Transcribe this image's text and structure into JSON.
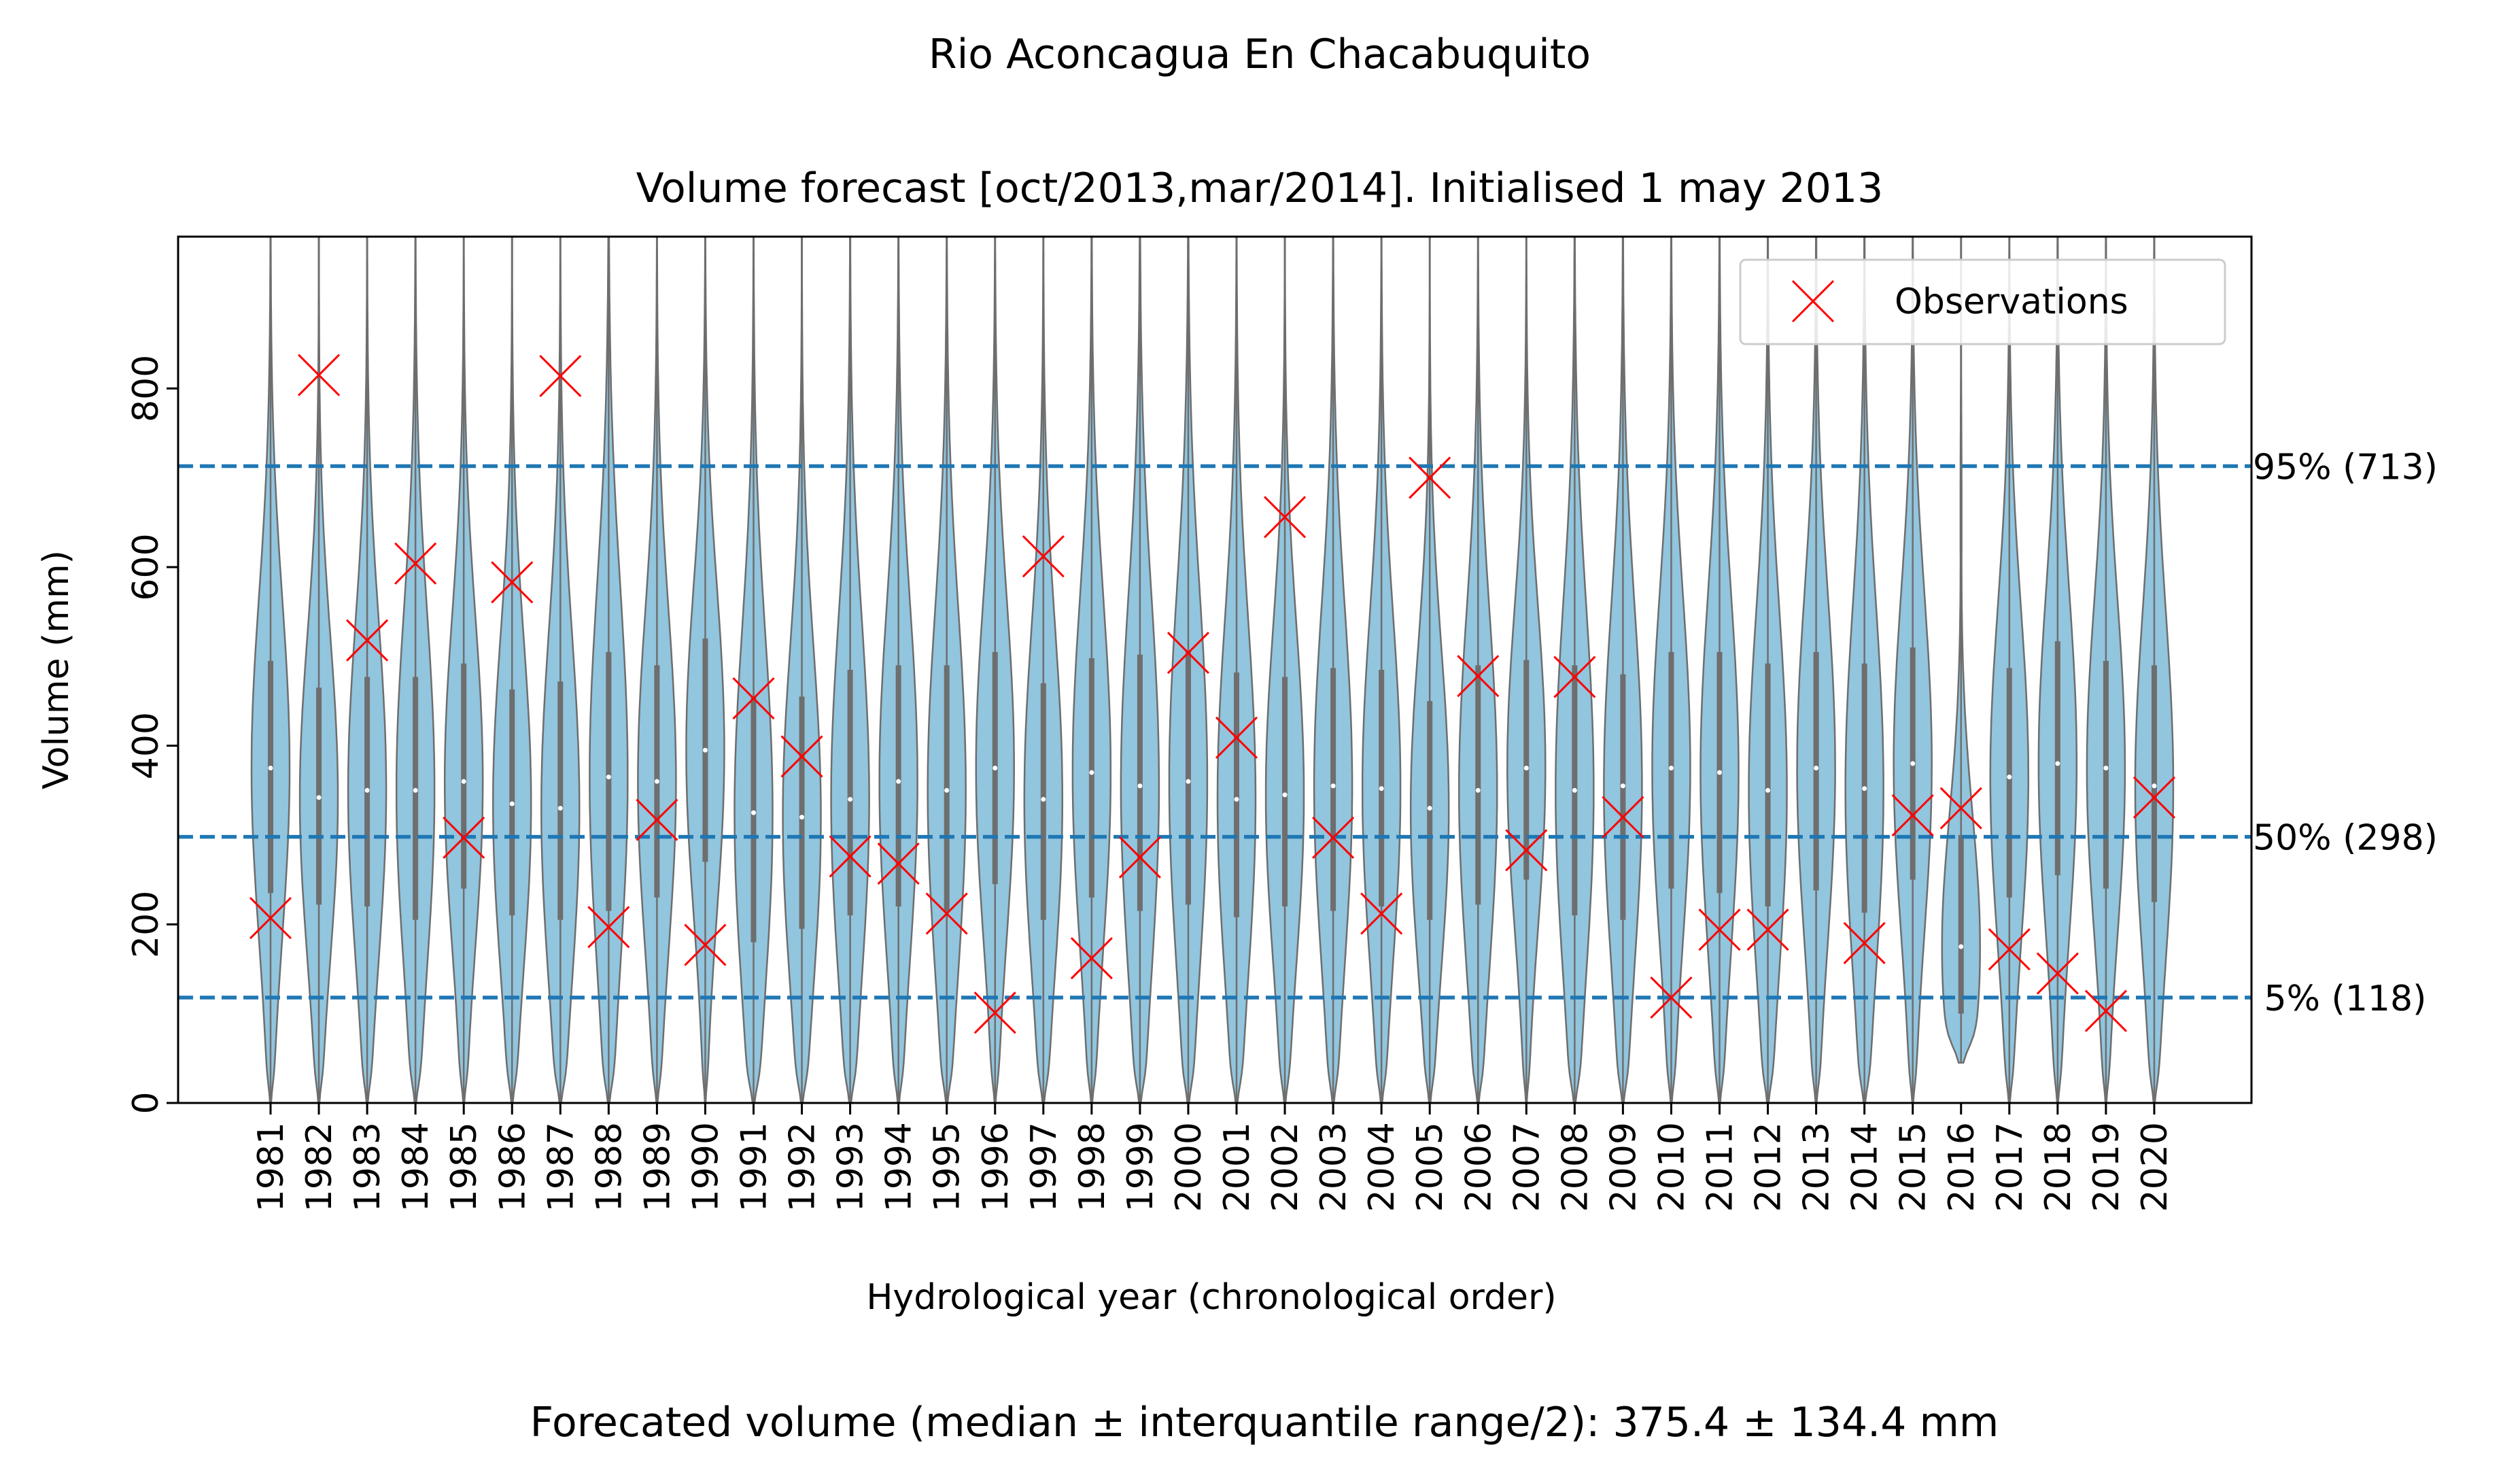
{
  "title": "Rio Aconcagua En Chacabuquito",
  "subtitle": "Volume forecast  [oct/2013,mar/2014]. Initialised 1 may 2013",
  "footer": "Forecated volume (median ±  interquantile range/2): 375.4 ± 134.4 mm",
  "colors": {
    "violin_fill": "#92c5de",
    "violin_edge": "#6e6e6e",
    "reference_line": "#1f77b4",
    "observation": "#ff0000",
    "highlight_year": "#1e90ff"
  },
  "chart_data": {
    "type": "violin",
    "xlabel": "Hydrological year (chronological order)",
    "ylabel": "Volume (mm)",
    "ylim": [
      0,
      970
    ],
    "yticks": [
      0,
      200,
      400,
      600,
      800
    ],
    "highlight_category": "2013",
    "legend": {
      "label": "Observations",
      "placement": "top-right"
    },
    "categories": [
      "1981",
      "1982",
      "1983",
      "1984",
      "1985",
      "1986",
      "1987",
      "1988",
      "1989",
      "1990",
      "1991",
      "1992",
      "1993",
      "1994",
      "1995",
      "1996",
      "1997",
      "1998",
      "1999",
      "2000",
      "2001",
      "2002",
      "2003",
      "2004",
      "2005",
      "2006",
      "2007",
      "2008",
      "2009",
      "2010",
      "2011",
      "2012",
      "2013",
      "2014",
      "2015",
      "2016",
      "2017",
      "2018",
      "2019",
      "2020"
    ],
    "observations": [
      207,
      815,
      518,
      604,
      297,
      583,
      814,
      197,
      317,
      177,
      453,
      388,
      276,
      268,
      212,
      101,
      612,
      162,
      275,
      504,
      409,
      656,
      297,
      212,
      700,
      478,
      283,
      477,
      320,
      118,
      194,
      194,
      null,
      179,
      322,
      330,
      172,
      145,
      103,
      342
    ],
    "violins": [
      {
        "median": 375,
        "q1": 235,
        "q3": 495,
        "max": 970,
        "min": 0
      },
      {
        "median": 342,
        "q1": 222,
        "q3": 465,
        "max": 970,
        "min": 0
      },
      {
        "median": 350,
        "q1": 220,
        "q3": 477,
        "max": 970,
        "min": 0
      },
      {
        "median": 350,
        "q1": 205,
        "q3": 477,
        "max": 970,
        "min": 0
      },
      {
        "median": 360,
        "q1": 240,
        "q3": 492,
        "max": 970,
        "min": 0
      },
      {
        "median": 335,
        "q1": 210,
        "q3": 463,
        "max": 970,
        "min": 0
      },
      {
        "median": 330,
        "q1": 205,
        "q3": 472,
        "max": 970,
        "min": 0
      },
      {
        "median": 365,
        "q1": 215,
        "q3": 505,
        "max": 970,
        "min": 0
      },
      {
        "median": 360,
        "q1": 230,
        "q3": 490,
        "max": 970,
        "min": 0
      },
      {
        "median": 395,
        "q1": 270,
        "q3": 520,
        "max": 970,
        "min": 0
      },
      {
        "median": 325,
        "q1": 180,
        "q3": 455,
        "max": 970,
        "min": 0
      },
      {
        "median": 320,
        "q1": 195,
        "q3": 455,
        "max": 970,
        "min": 0
      },
      {
        "median": 340,
        "q1": 210,
        "q3": 485,
        "max": 970,
        "min": 0
      },
      {
        "median": 360,
        "q1": 220,
        "q3": 490,
        "max": 970,
        "min": 0
      },
      {
        "median": 350,
        "q1": 215,
        "q3": 490,
        "max": 970,
        "min": 0
      },
      {
        "median": 375,
        "q1": 245,
        "q3": 505,
        "max": 970,
        "min": 0
      },
      {
        "median": 340,
        "q1": 205,
        "q3": 470,
        "max": 970,
        "min": 0
      },
      {
        "median": 370,
        "q1": 230,
        "q3": 498,
        "max": 970,
        "min": 0
      },
      {
        "median": 355,
        "q1": 215,
        "q3": 502,
        "max": 970,
        "min": 0
      },
      {
        "median": 360,
        "q1": 222,
        "q3": 507,
        "max": 970,
        "min": 0
      },
      {
        "median": 340,
        "q1": 208,
        "q3": 482,
        "max": 970,
        "min": 0
      },
      {
        "median": 345,
        "q1": 220,
        "q3": 477,
        "max": 970,
        "min": 0
      },
      {
        "median": 355,
        "q1": 215,
        "q3": 487,
        "max": 970,
        "min": 0
      },
      {
        "median": 352,
        "q1": 220,
        "q3": 485,
        "max": 970,
        "min": 0
      },
      {
        "median": 330,
        "q1": 205,
        "q3": 450,
        "max": 970,
        "min": 0
      },
      {
        "median": 350,
        "q1": 222,
        "q3": 490,
        "max": 970,
        "min": 0
      },
      {
        "median": 375,
        "q1": 250,
        "q3": 496,
        "max": 970,
        "min": 0
      },
      {
        "median": 350,
        "q1": 210,
        "q3": 490,
        "max": 970,
        "min": 0
      },
      {
        "median": 355,
        "q1": 205,
        "q3": 480,
        "max": 970,
        "min": 0
      },
      {
        "median": 375,
        "q1": 240,
        "q3": 505,
        "max": 970,
        "min": 0
      },
      {
        "median": 370,
        "q1": 235,
        "q3": 505,
        "max": 970,
        "min": 0
      },
      {
        "median": 350,
        "q1": 220,
        "q3": 492,
        "max": 970,
        "min": 0
      },
      {
        "median": 375,
        "q1": 238,
        "q3": 505,
        "max": 970,
        "min": 0
      },
      {
        "median": 352,
        "q1": 213,
        "q3": 492,
        "max": 970,
        "min": 0
      },
      {
        "median": 380,
        "q1": 250,
        "q3": 510,
        "max": 970,
        "min": 0
      },
      {
        "median": 175,
        "q1": 100,
        "q3": 300,
        "max": 970,
        "min": 45
      },
      {
        "median": 365,
        "q1": 230,
        "q3": 487,
        "max": 970,
        "min": 0
      },
      {
        "median": 380,
        "q1": 255,
        "q3": 517,
        "max": 970,
        "min": 0
      },
      {
        "median": 375,
        "q1": 240,
        "q3": 495,
        "max": 970,
        "min": 0
      },
      {
        "median": 355,
        "q1": 225,
        "q3": 490,
        "max": 970,
        "min": 0
      }
    ],
    "reference_lines": [
      {
        "value": 713,
        "label": "95% (713)"
      },
      {
        "value": 298,
        "label": "50% (298)"
      },
      {
        "value": 118,
        "label": " 5% (118)"
      }
    ]
  }
}
